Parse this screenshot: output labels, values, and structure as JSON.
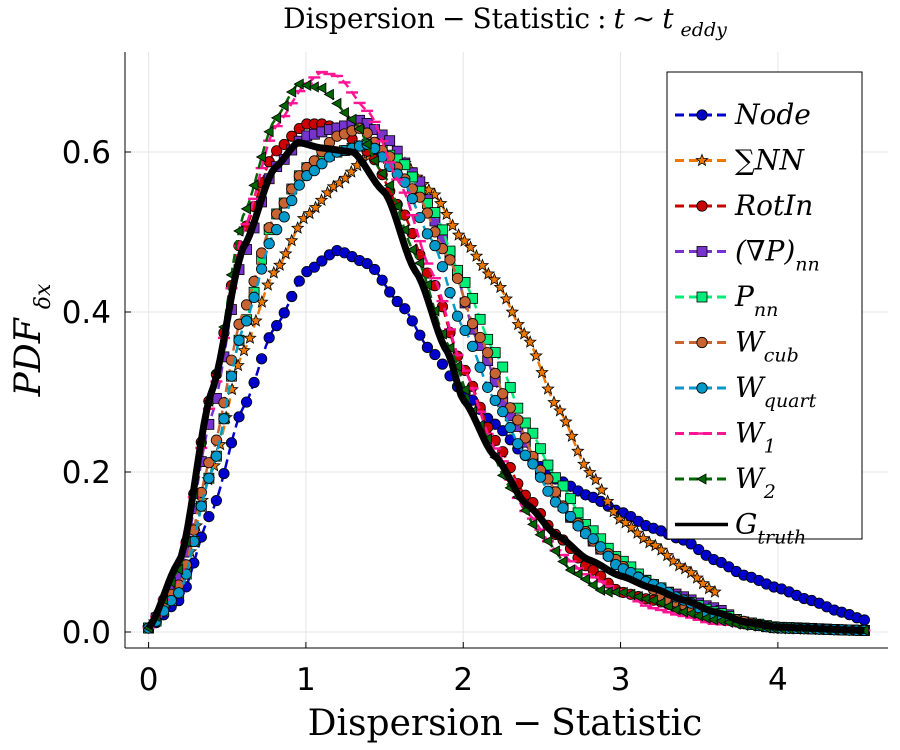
{
  "chart_data": {
    "type": "line",
    "title_word": "Dispersion",
    "title_mid": "Statistic",
    "title_t": "t",
    "title_tildeword": "t",
    "title_sub": "eddy",
    "title_minus": "−",
    "title_colon": ":",
    "title_sim": "∼",
    "xlabel_word": "Dispersion",
    "xlabel_minus": "−",
    "xlabel_word2": "Statistic",
    "ylabel_main": "PDF",
    "ylabel_sub": "δx",
    "xlim": [
      -0.15,
      4.7
    ],
    "ylim": [
      -0.02,
      0.725
    ],
    "x_ticks": [
      0,
      1,
      2,
      3,
      4
    ],
    "x_tick_labels": [
      "0",
      "1",
      "2",
      "3",
      "4"
    ],
    "y_ticks": [
      0.0,
      0.2,
      0.4,
      0.6
    ],
    "y_tick_labels": [
      "0.0",
      "0.2",
      "0.4",
      "0.6"
    ],
    "grid": true,
    "legend_position": "top-right",
    "series": [
      {
        "name": "Node",
        "label_main": "Node",
        "label_sub": "",
        "color": "#0000cc",
        "marker": "circle",
        "x_max": 4.55,
        "points": [
          [
            0,
            0.005
          ],
          [
            0.2,
            0.04
          ],
          [
            0.4,
            0.15
          ],
          [
            0.6,
            0.28
          ],
          [
            0.8,
            0.38
          ],
          [
            1.0,
            0.45
          ],
          [
            1.2,
            0.477
          ],
          [
            1.4,
            0.46
          ],
          [
            1.6,
            0.41
          ],
          [
            1.8,
            0.35
          ],
          [
            2.0,
            0.3
          ],
          [
            2.2,
            0.26
          ],
          [
            2.4,
            0.22
          ],
          [
            2.6,
            0.19
          ],
          [
            2.8,
            0.17
          ],
          [
            3.0,
            0.15
          ],
          [
            3.2,
            0.13
          ],
          [
            3.4,
            0.115
          ],
          [
            3.6,
            0.09
          ],
          [
            3.8,
            0.07
          ],
          [
            4.0,
            0.055
          ],
          [
            4.2,
            0.04
          ],
          [
            4.4,
            0.025
          ],
          [
            4.55,
            0.015
          ]
        ]
      },
      {
        "name": "SumNN",
        "label_main": "NN",
        "label_sub": "",
        "color": "#ee7700",
        "marker": "star",
        "x_max": 3.6,
        "points": [
          [
            0,
            0.005
          ],
          [
            0.2,
            0.06
          ],
          [
            0.4,
            0.2
          ],
          [
            0.6,
            0.35
          ],
          [
            0.8,
            0.45
          ],
          [
            1.0,
            0.52
          ],
          [
            1.2,
            0.56
          ],
          [
            1.4,
            0.595
          ],
          [
            1.6,
            0.59
          ],
          [
            1.8,
            0.55
          ],
          [
            2.0,
            0.49
          ],
          [
            2.2,
            0.44
          ],
          [
            2.4,
            0.37
          ],
          [
            2.6,
            0.28
          ],
          [
            2.8,
            0.2
          ],
          [
            3.0,
            0.14
          ],
          [
            3.2,
            0.11
          ],
          [
            3.4,
            0.08
          ],
          [
            3.6,
            0.05
          ]
        ]
      },
      {
        "name": "RotIn",
        "label_main": "RotIn",
        "label_sub": "",
        "color": "#cc0000",
        "marker": "circle",
        "x_max": 4.55,
        "points": [
          [
            0,
            0.005
          ],
          [
            0.2,
            0.08
          ],
          [
            0.4,
            0.3
          ],
          [
            0.6,
            0.5
          ],
          [
            0.8,
            0.6
          ],
          [
            1.0,
            0.635
          ],
          [
            1.1,
            0.635
          ],
          [
            1.2,
            0.63
          ],
          [
            1.4,
            0.6
          ],
          [
            1.6,
            0.53
          ],
          [
            1.8,
            0.44
          ],
          [
            2.0,
            0.33
          ],
          [
            2.2,
            0.24
          ],
          [
            2.4,
            0.17
          ],
          [
            2.6,
            0.12
          ],
          [
            2.8,
            0.08
          ],
          [
            3.0,
            0.05
          ],
          [
            3.2,
            0.04
          ],
          [
            3.4,
            0.03
          ],
          [
            3.6,
            0.02
          ],
          [
            3.8,
            0.01
          ],
          [
            4.0,
            0.005
          ],
          [
            4.55,
            0.002
          ]
        ]
      },
      {
        "name": "GradP_nn",
        "label_main": "(∇P)",
        "label_sub": "nn",
        "color": "#7733cc",
        "marker": "square",
        "x_max": 4.55,
        "points": [
          [
            0,
            0.005
          ],
          [
            0.2,
            0.07
          ],
          [
            0.4,
            0.27
          ],
          [
            0.6,
            0.47
          ],
          [
            0.8,
            0.58
          ],
          [
            1.0,
            0.62
          ],
          [
            1.2,
            0.63
          ],
          [
            1.35,
            0.64
          ],
          [
            1.5,
            0.62
          ],
          [
            1.7,
            0.57
          ],
          [
            1.9,
            0.48
          ],
          [
            2.1,
            0.36
          ],
          [
            2.3,
            0.27
          ],
          [
            2.5,
            0.2
          ],
          [
            2.7,
            0.14
          ],
          [
            2.9,
            0.1
          ],
          [
            3.1,
            0.07
          ],
          [
            3.3,
            0.05
          ],
          [
            3.6,
            0.03
          ],
          [
            3.8,
            0.01
          ],
          [
            4.0,
            0.005
          ],
          [
            4.55,
            0.002
          ]
        ]
      },
      {
        "name": "P_nn",
        "label_main": "P",
        "label_sub": "nn",
        "color": "#00ee77",
        "marker": "square",
        "x_max": 4.55,
        "points": [
          [
            0,
            0.005
          ],
          [
            0.2,
            0.05
          ],
          [
            0.4,
            0.2
          ],
          [
            0.6,
            0.38
          ],
          [
            0.8,
            0.52
          ],
          [
            1.0,
            0.58
          ],
          [
            1.2,
            0.6
          ],
          [
            1.4,
            0.61
          ],
          [
            1.6,
            0.59
          ],
          [
            1.8,
            0.53
          ],
          [
            2.0,
            0.44
          ],
          [
            2.2,
            0.35
          ],
          [
            2.4,
            0.26
          ],
          [
            2.6,
            0.19
          ],
          [
            2.8,
            0.13
          ],
          [
            3.0,
            0.09
          ],
          [
            3.2,
            0.06
          ],
          [
            3.4,
            0.04
          ],
          [
            3.6,
            0.025
          ],
          [
            3.8,
            0.012
          ],
          [
            4.0,
            0.006
          ],
          [
            4.55,
            0.002
          ]
        ]
      },
      {
        "name": "W_cub",
        "label_main": "W",
        "label_sub": "cub",
        "color": "#c86432",
        "marker": "circle",
        "x_max": 4.55,
        "points": [
          [
            0,
            0.005
          ],
          [
            0.2,
            0.06
          ],
          [
            0.4,
            0.22
          ],
          [
            0.6,
            0.4
          ],
          [
            0.8,
            0.52
          ],
          [
            1.0,
            0.58
          ],
          [
            1.2,
            0.62
          ],
          [
            1.35,
            0.63
          ],
          [
            1.5,
            0.6
          ],
          [
            1.7,
            0.55
          ],
          [
            1.9,
            0.47
          ],
          [
            2.1,
            0.37
          ],
          [
            2.3,
            0.28
          ],
          [
            2.5,
            0.2
          ],
          [
            2.7,
            0.14
          ],
          [
            2.9,
            0.1
          ],
          [
            3.1,
            0.07
          ],
          [
            3.3,
            0.04
          ],
          [
            3.6,
            0.02
          ],
          [
            4.0,
            0.005
          ],
          [
            4.55,
            0.002
          ]
        ]
      },
      {
        "name": "W_quart",
        "label_main": "W",
        "label_sub": "quart",
        "color": "#0099cc",
        "marker": "circle",
        "x_max": 4.55,
        "points": [
          [
            0,
            0.005
          ],
          [
            0.2,
            0.05
          ],
          [
            0.4,
            0.2
          ],
          [
            0.6,
            0.38
          ],
          [
            0.8,
            0.5
          ],
          [
            1.0,
            0.57
          ],
          [
            1.2,
            0.6
          ],
          [
            1.4,
            0.61
          ],
          [
            1.6,
            0.57
          ],
          [
            1.8,
            0.49
          ],
          [
            2.0,
            0.38
          ],
          [
            2.2,
            0.29
          ],
          [
            2.4,
            0.22
          ],
          [
            2.6,
            0.16
          ],
          [
            2.8,
            0.12
          ],
          [
            3.0,
            0.08
          ],
          [
            3.2,
            0.06
          ],
          [
            3.4,
            0.04
          ],
          [
            3.6,
            0.02
          ],
          [
            3.8,
            0.01
          ],
          [
            4.0,
            0.005
          ],
          [
            4.55,
            0.002
          ]
        ]
      },
      {
        "name": "W_1",
        "label_main": "W",
        "label_sub": "1",
        "color": "#ff1493",
        "marker": "hline",
        "x_max": 4.55,
        "points": [
          [
            0,
            0.005
          ],
          [
            0.2,
            0.08
          ],
          [
            0.4,
            0.29
          ],
          [
            0.6,
            0.5
          ],
          [
            0.8,
            0.63
          ],
          [
            1.0,
            0.685
          ],
          [
            1.1,
            0.7
          ],
          [
            1.2,
            0.695
          ],
          [
            1.4,
            0.65
          ],
          [
            1.6,
            0.56
          ],
          [
            1.8,
            0.45
          ],
          [
            2.0,
            0.33
          ],
          [
            2.2,
            0.23
          ],
          [
            2.4,
            0.15
          ],
          [
            2.6,
            0.1
          ],
          [
            2.8,
            0.07
          ],
          [
            3.0,
            0.05
          ],
          [
            3.2,
            0.03
          ],
          [
            3.4,
            0.02
          ],
          [
            3.6,
            0.01
          ],
          [
            4.0,
            0.004
          ],
          [
            4.55,
            0.002
          ]
        ]
      },
      {
        "name": "W_2",
        "label_main": "W",
        "label_sub": "2",
        "color": "#006400",
        "marker": "triangle",
        "x_max": 4.55,
        "points": [
          [
            0,
            0.005
          ],
          [
            0.2,
            0.08
          ],
          [
            0.4,
            0.3
          ],
          [
            0.6,
            0.52
          ],
          [
            0.8,
            0.64
          ],
          [
            0.95,
            0.685
          ],
          [
            1.1,
            0.68
          ],
          [
            1.3,
            0.64
          ],
          [
            1.5,
            0.57
          ],
          [
            1.7,
            0.47
          ],
          [
            1.9,
            0.36
          ],
          [
            2.1,
            0.26
          ],
          [
            2.3,
            0.18
          ],
          [
            2.5,
            0.12
          ],
          [
            2.7,
            0.075
          ],
          [
            2.9,
            0.05
          ],
          [
            3.0,
            0.05
          ],
          [
            3.2,
            0.04
          ],
          [
            3.4,
            0.025
          ],
          [
            3.6,
            0.015
          ],
          [
            3.8,
            0.008
          ],
          [
            4.0,
            0.004
          ],
          [
            4.55,
            0.002
          ]
        ]
      },
      {
        "name": "G_truth",
        "label_main": "G",
        "label_sub": "truth",
        "color": "#000000",
        "marker": "none",
        "x_max": 4.55,
        "points": [
          [
            0,
            0.005
          ],
          [
            0.2,
            0.09
          ],
          [
            0.4,
            0.3
          ],
          [
            0.6,
            0.48
          ],
          [
            0.8,
            0.58
          ],
          [
            0.95,
            0.612
          ],
          [
            1.1,
            0.605
          ],
          [
            1.3,
            0.6
          ],
          [
            1.5,
            0.55
          ],
          [
            1.7,
            0.45
          ],
          [
            1.9,
            0.35
          ],
          [
            2.0,
            0.29
          ],
          [
            2.2,
            0.22
          ],
          [
            2.4,
            0.16
          ],
          [
            2.6,
            0.12
          ],
          [
            2.8,
            0.09
          ],
          [
            3.0,
            0.07
          ],
          [
            3.2,
            0.055
          ],
          [
            3.4,
            0.04
          ],
          [
            3.6,
            0.025
          ],
          [
            3.8,
            0.012
          ],
          [
            4.0,
            0.006
          ],
          [
            4.55,
            0.002
          ]
        ]
      }
    ]
  }
}
